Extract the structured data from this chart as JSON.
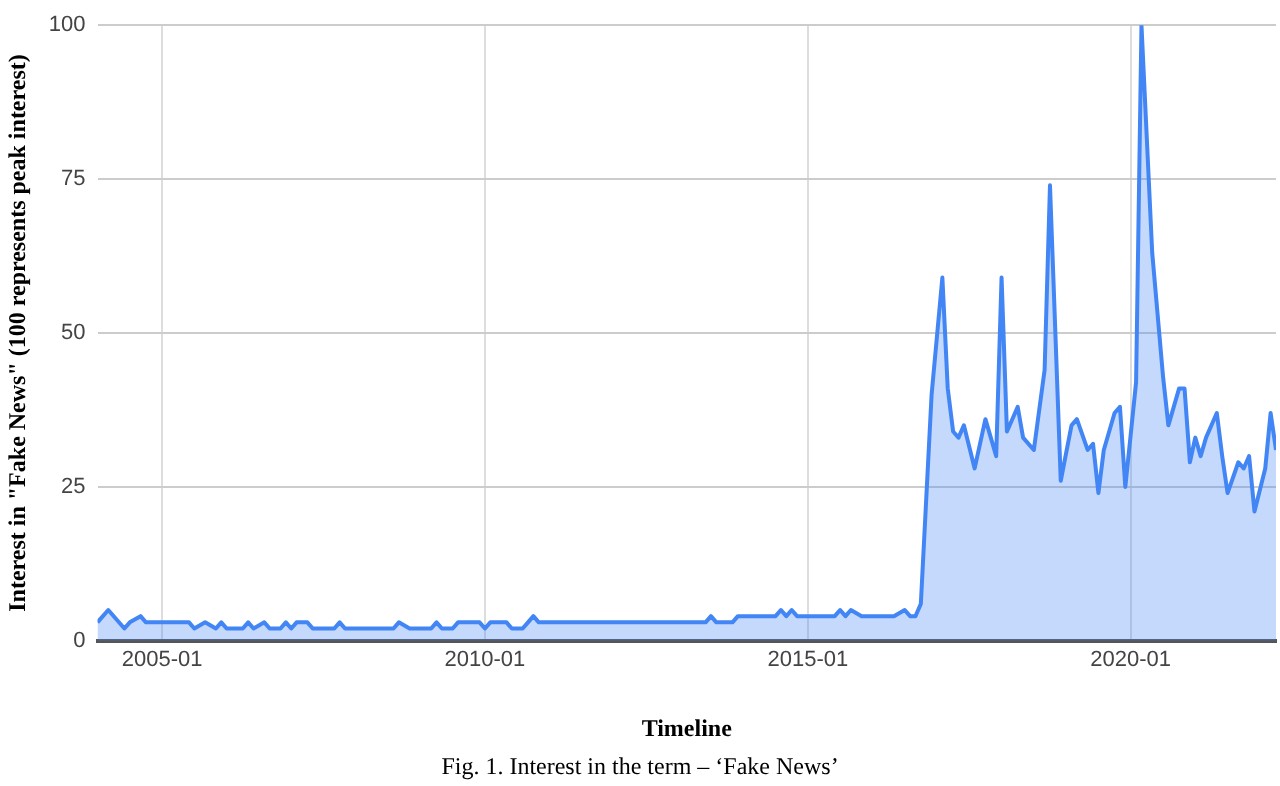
{
  "chart_data": {
    "type": "area",
    "xlabel": "Timeline",
    "ylabel": "Interest in \"Fake News\" (100 represents peak interest)",
    "annotations": [
      "Fig. 1. Interest in the term – ‘Fake News’"
    ],
    "xlim": [
      "2004-01",
      "2022-04"
    ],
    "xticks": [
      "2005-01",
      "2010-01",
      "2015-01",
      "2020-01"
    ],
    "ylim": [
      0,
      100
    ],
    "yticks": [
      0,
      25,
      50,
      75,
      100
    ],
    "grid": true,
    "legend": false,
    "marker": "none",
    "series": [
      {
        "color": "#4285f4",
        "x": [
          "2004-01",
          "2004-03",
          "2004-06",
          "2004-07",
          "2004-09",
          "2004-10",
          "2005-06",
          "2005-07",
          "2005-09",
          "2005-11",
          "2005-12",
          "2006-01",
          "2006-04",
          "2006-05",
          "2006-06",
          "2006-08",
          "2006-09",
          "2006-11",
          "2006-12",
          "2007-01",
          "2007-02",
          "2007-04",
          "2007-05",
          "2007-09",
          "2007-10",
          "2007-11",
          "2008-08",
          "2008-09",
          "2008-11",
          "2009-03",
          "2009-04",
          "2009-05",
          "2009-07",
          "2009-08",
          "2009-12",
          "2010-01",
          "2010-02",
          "2010-05",
          "2010-06",
          "2010-08",
          "2010-09",
          "2010-10",
          "2010-11",
          "2013-06",
          "2013-07",
          "2013-08",
          "2013-11",
          "2013-12",
          "2014-07",
          "2014-08",
          "2014-09",
          "2014-10",
          "2014-11",
          "2015-06",
          "2015-07",
          "2015-08",
          "2015-09",
          "2015-11",
          "2016-05",
          "2016-07",
          "2016-08",
          "2016-09",
          "2016-10",
          "2016-12",
          "2017-02",
          "2017-03",
          "2017-04",
          "2017-05",
          "2017-06",
          "2017-08",
          "2017-10",
          "2017-12",
          "2018-01",
          "2018-02",
          "2018-03",
          "2018-04",
          "2018-05",
          "2018-07",
          "2018-09",
          "2018-10",
          "2018-12",
          "2019-02",
          "2019-03",
          "2019-05",
          "2019-06",
          "2019-07",
          "2019-08",
          "2019-10",
          "2019-11",
          "2019-12",
          "2020-02",
          "2020-03",
          "2020-05",
          "2020-07",
          "2020-08",
          "2020-10",
          "2020-11",
          "2020-12",
          "2021-01",
          "2021-02",
          "2021-03",
          "2021-05",
          "2021-06",
          "2021-07",
          "2021-09",
          "2021-10",
          "2021-11",
          "2021-12",
          "2022-02",
          "2022-03",
          "2022-04"
        ],
        "values": [
          3,
          5,
          2,
          3,
          4,
          3,
          3,
          2,
          3,
          2,
          3,
          2,
          2,
          3,
          2,
          3,
          2,
          2,
          3,
          2,
          3,
          3,
          2,
          2,
          3,
          2,
          2,
          3,
          2,
          2,
          3,
          2,
          2,
          3,
          3,
          2,
          3,
          3,
          2,
          2,
          3,
          4,
          3,
          3,
          4,
          3,
          3,
          4,
          4,
          5,
          4,
          5,
          4,
          4,
          5,
          4,
          5,
          4,
          4,
          5,
          4,
          4,
          6,
          40,
          59,
          41,
          34,
          33,
          35,
          28,
          36,
          30,
          59,
          34,
          36,
          38,
          33,
          31,
          44,
          74,
          26,
          35,
          36,
          31,
          32,
          24,
          31,
          37,
          38,
          25,
          42,
          100,
          63,
          43,
          35,
          41,
          41,
          29,
          33,
          30,
          33,
          37,
          30,
          24,
          29,
          28,
          30,
          21,
          28,
          37,
          31
        ]
      }
    ]
  }
}
